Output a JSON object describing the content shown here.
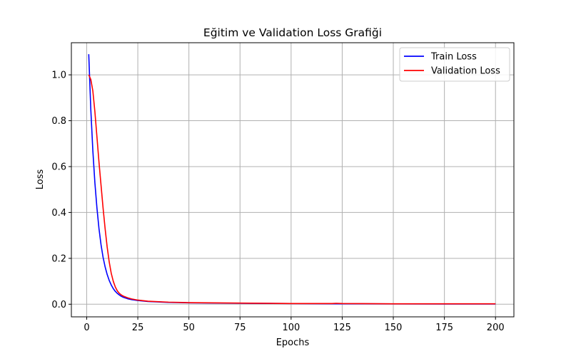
{
  "chart_data": {
    "type": "line",
    "title": "Eğitim ve Validation Loss Grafiği",
    "xlabel": "Epochs",
    "ylabel": "Loss",
    "xlim": [
      -7.5,
      209
    ],
    "ylim": [
      -0.055,
      1.14
    ],
    "xticks": [
      0,
      25,
      50,
      75,
      100,
      125,
      150,
      175,
      200
    ],
    "yticks": [
      0.0,
      0.2,
      0.4,
      0.6,
      0.8,
      1.0
    ],
    "ytick_labels": [
      "0.0",
      "0.2",
      "0.4",
      "0.6",
      "0.8",
      "1.0"
    ],
    "grid": true,
    "legend_position": "top-right",
    "series": [
      {
        "name": "Train Loss",
        "color": "#0000ff",
        "x": [
          1,
          2,
          3,
          4,
          5,
          6,
          7,
          8,
          9,
          10,
          11,
          12,
          13,
          14,
          15,
          16,
          17,
          18,
          20,
          22,
          25,
          30,
          40,
          50,
          75,
          100,
          125,
          150,
          175,
          200
        ],
        "y": [
          1.09,
          0.85,
          0.67,
          0.53,
          0.42,
          0.33,
          0.26,
          0.205,
          0.163,
          0.13,
          0.104,
          0.084,
          0.068,
          0.056,
          0.047,
          0.04,
          0.034,
          0.03,
          0.024,
          0.02,
          0.016,
          0.012,
          0.008,
          0.006,
          0.004,
          0.003,
          0.002,
          0.0015,
          0.001,
          0.001
        ]
      },
      {
        "name": "Validation Loss",
        "color": "#ff0000",
        "x": [
          1,
          2,
          3,
          4,
          5,
          6,
          7,
          8,
          9,
          10,
          11,
          12,
          13,
          14,
          15,
          16,
          17,
          18,
          20,
          22,
          25,
          30,
          40,
          50,
          75,
          100,
          120,
          122,
          125,
          150,
          175,
          200
        ],
        "y": [
          1.0,
          0.98,
          0.93,
          0.84,
          0.73,
          0.62,
          0.52,
          0.42,
          0.33,
          0.25,
          0.185,
          0.135,
          0.1,
          0.075,
          0.058,
          0.047,
          0.04,
          0.035,
          0.028,
          0.023,
          0.018,
          0.013,
          0.009,
          0.007,
          0.005,
          0.003,
          0.003,
          0.004,
          0.003,
          0.002,
          0.002,
          0.002
        ]
      }
    ]
  }
}
